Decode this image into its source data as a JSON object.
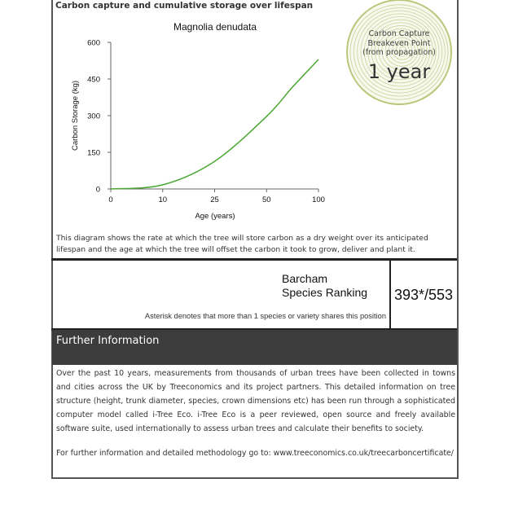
{
  "section_title": "Carbon capture and cumulative storage over lifespan",
  "chart_data": {
    "type": "line",
    "title": "Magnolia denudata",
    "xlabel": "Age (years)",
    "ylabel": "Carbon Storage (kg)",
    "x_ticks": [
      "0",
      "10",
      "25",
      "50",
      "100"
    ],
    "y_ticks": [
      "0",
      "150",
      "300",
      "450",
      "600"
    ],
    "ylim": [
      0,
      600
    ],
    "grid": false,
    "color": "#4aa832",
    "x": [
      0,
      10,
      25,
      50,
      75,
      100
    ],
    "y": [
      0,
      17,
      113,
      297,
      417,
      530
    ]
  },
  "badge": {
    "lines": [
      "Carbon Capture",
      "Breakeven Point",
      "(from propagation)"
    ],
    "value": "1 year",
    "color": "#b8c77a"
  },
  "description": "This diagram shows the rate at which the tree will store carbon as a dry weight over its anticipated lifespan and the age at which the tree will offset the carbon it took to grow, deliver and plant it.",
  "ranking": {
    "title_line1": "Barcham",
    "title_line2": "Species Ranking",
    "value": "393*/553",
    "note": "Asterisk denotes that more than 1 species or variety shares this position"
  },
  "further_info": {
    "title": "Further Information",
    "body": "Over the past 10 years, measurements from thousands of urban trees have been collected in towns and cities across the UK by Treeconomics and its project partners. This detailed information on tree structure (height, trunk diameter, species, crown dimensions etc) has been run through a sophisticated computer model called i-Tree Eco. i-Tree Eco is a peer reviewed, open source and freely available software suite, used internationally to assess urban trees and calculate their benefits to society.",
    "link_text": "For further information and detailed methodology go to: www.treeconomics.co.uk/treecarboncertificate/"
  },
  "colors": {
    "header_bg": "#3c3c3c",
    "border": "#222222"
  }
}
